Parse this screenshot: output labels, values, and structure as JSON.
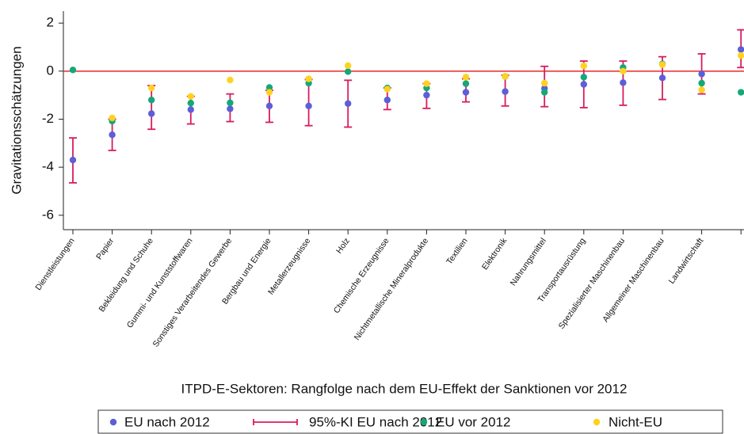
{
  "chart_data": {
    "type": "errorbar-dot",
    "y_label": "Gravitationsschätzungen",
    "x_label": "ITPD-E-Sektoren: Rangfolge nach dem EU-Effekt der Sanktionen vor 2012",
    "categories": [
      "Dienstleistungen",
      "Papier",
      "Bekleidung und Schuhe",
      "Gummi- und Kunststoffwaren",
      "Sonstiges Verarbeitendes Gewerbe",
      "Bergbau und Energie",
      "Metallerzeugnisse",
      "Holz",
      "Chemische Erzeugnisse",
      "Nichtmetallische Mineralprodukte",
      "Textilien",
      "Elektronik",
      "Nahrungsmittel",
      "Transportausrüstung",
      "Spezialisierter Maschinenbau",
      "Allgemeiner Maschinenbau",
      "Landwirtschaft",
      null
    ],
    "series": [
      {
        "name": "EU nach 2012",
        "kind": "dot",
        "color": "#5b5fd8",
        "values": [
          -3.7,
          -2.65,
          -1.77,
          -1.6,
          -1.57,
          -1.45,
          -1.45,
          -1.35,
          -1.2,
          -1.0,
          -0.88,
          -0.85,
          -0.72,
          -0.55,
          -0.48,
          -0.28,
          -0.12,
          0.9
        ]
      },
      {
        "name": "95%-KI EU nach 2012",
        "kind": "errorbar",
        "color": "#d81b60",
        "low": [
          -4.65,
          -3.3,
          -2.42,
          -2.2,
          -2.1,
          -2.13,
          -2.27,
          -2.33,
          -1.6,
          -1.55,
          -1.28,
          -1.45,
          -1.48,
          -1.52,
          -1.42,
          -1.18,
          -0.95,
          0.15
        ],
        "high": [
          -2.78,
          -2.0,
          -0.6,
          -1.05,
          -0.95,
          -0.8,
          -0.35,
          -0.38,
          -0.7,
          -0.52,
          -0.32,
          -0.17,
          0.2,
          0.42,
          0.42,
          0.6,
          0.72,
          1.72
        ]
      },
      {
        "name": "EU vor 2012",
        "kind": "dot",
        "color": "#14a878",
        "values": [
          0.05,
          -2.08,
          -1.2,
          -1.33,
          -1.32,
          -0.68,
          -0.5,
          -0.02,
          -0.7,
          -0.7,
          -0.52,
          -0.22,
          -0.88,
          -0.25,
          0.15,
          0.3,
          -0.5,
          -0.88
        ]
      },
      {
        "name": "Nicht-EU",
        "kind": "dot",
        "color": "#ffd21f",
        "values": [
          null,
          -1.95,
          -0.7,
          -1.05,
          -0.37,
          -0.88,
          -0.32,
          0.23,
          -0.75,
          -0.52,
          -0.25,
          -0.22,
          -0.5,
          0.22,
          0.0,
          0.27,
          -0.78,
          0.65
        ]
      }
    ],
    "ylim": [
      -6.6,
      2.5
    ],
    "yticks": [
      -6,
      -4,
      -2,
      0,
      2
    ],
    "reference_line": {
      "value": 0,
      "color": "#e8282b"
    },
    "grid": false,
    "legend": "bottom"
  }
}
